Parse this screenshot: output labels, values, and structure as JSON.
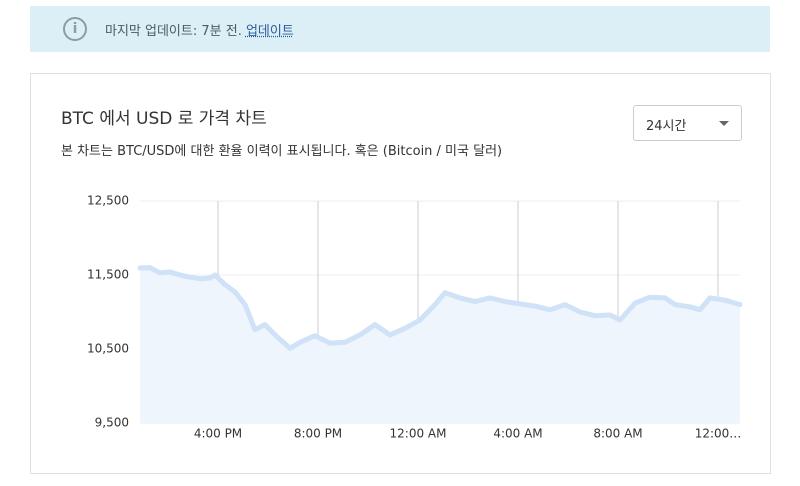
{
  "banner": {
    "text": "마지막 업데이트: 7분 전.",
    "link": "업데이트"
  },
  "dropdown": "24시간",
  "chart_data": {
    "type": "line",
    "title": "BTC 에서 USD 로 가격 차트",
    "subtitle": "본 차트는 BTC/USD에 대한 환율 이력이 표시됩니다. 혹은 (Bitcoin / 미국 달러)",
    "x": [
      12.88,
      13.28,
      13.68,
      14.08,
      14.48,
      14.88,
      15.28,
      15.68,
      15.88,
      16.28,
      16.68,
      17.08,
      17.48,
      17.88,
      18.28,
      18.88,
      19.28,
      19.88,
      20.48,
      21.08,
      21.68,
      22.28,
      22.88,
      23.48,
      24.08,
      24.68,
      25.08,
      25.68,
      26.28,
      26.88,
      27.48,
      28.08,
      28.68,
      29.28,
      29.88,
      30.48,
      31.08,
      31.68,
      32.08,
      32.68,
      33.28,
      33.88,
      34.28,
      34.88,
      35.28,
      35.68,
      36.28,
      36.88
    ],
    "values": [
      11595,
      11600,
      11530,
      11540,
      11500,
      11470,
      11450,
      11460,
      11500,
      11370,
      11270,
      11100,
      10760,
      10830,
      10690,
      10510,
      10590,
      10680,
      10580,
      10590,
      10690,
      10830,
      10690,
      10780,
      10890,
      11100,
      11260,
      11190,
      11140,
      11190,
      11140,
      11110,
      11080,
      11030,
      11100,
      11000,
      10950,
      10960,
      10890,
      11120,
      11200,
      11190,
      11100,
      11070,
      11030,
      11190,
      11160,
      11100
    ],
    "color": "#cfe2f7",
    "area_color": "#eef5fd",
    "xlim": [
      12.88,
      36.88
    ],
    "xticks": [
      {
        "value": 16,
        "label": "4:00 PM"
      },
      {
        "value": 20,
        "label": "8:00 PM"
      },
      {
        "value": 24,
        "label": "12:00 AM"
      },
      {
        "value": 28,
        "label": "4:00 AM"
      },
      {
        "value": 32,
        "label": "8:00 AM"
      },
      {
        "value": 36,
        "label": "12:00…"
      }
    ],
    "ylim": [
      9500,
      12500
    ],
    "yticks": [
      {
        "value": 9500,
        "label": "9,500"
      },
      {
        "value": 10500,
        "label": "10,500"
      },
      {
        "value": 11500,
        "label": "11,500"
      },
      {
        "value": 12500,
        "label": "12,500"
      }
    ],
    "grid": true
  }
}
